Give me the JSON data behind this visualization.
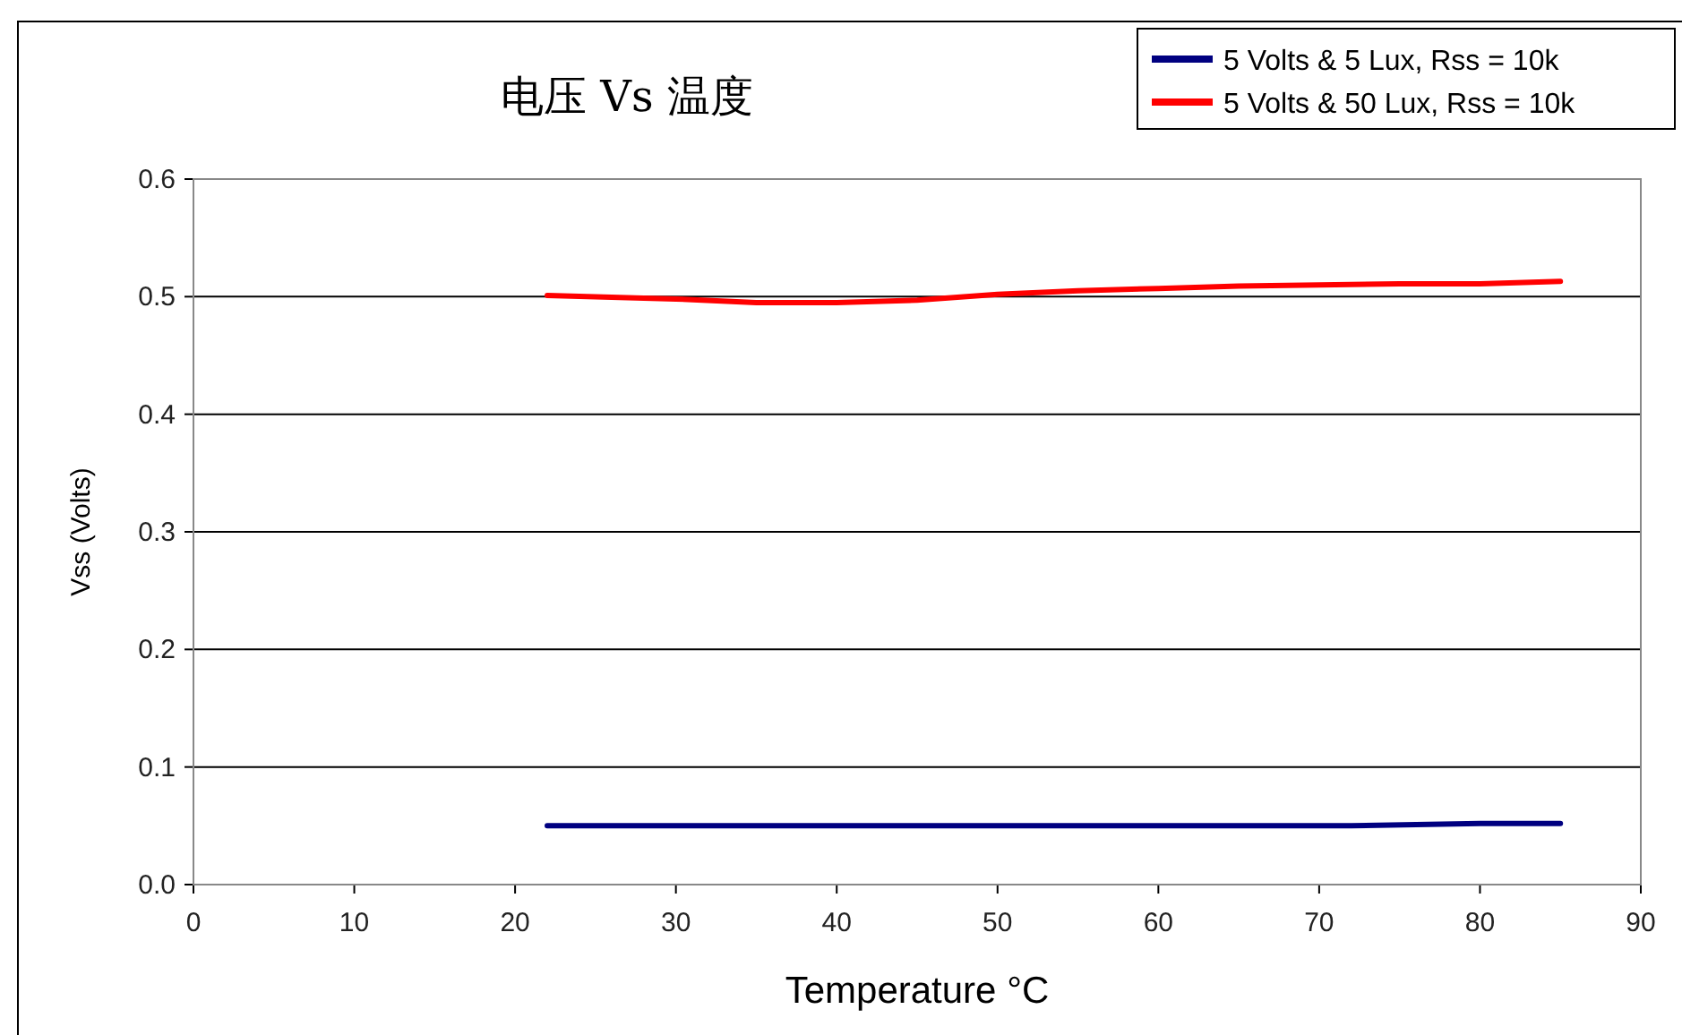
{
  "chart_data": {
    "type": "line",
    "title": "电压 Vs 温度",
    "xlabel": "Temperature °C",
    "ylabel": "Vss (Volts)",
    "xlim": [
      0,
      90
    ],
    "xticks": [
      0,
      10,
      20,
      30,
      40,
      50,
      60,
      70,
      80,
      90
    ],
    "ylim": [
      0,
      0.6
    ],
    "yticks": [
      {
        "value": 0,
        "label": "0.0"
      },
      0.1,
      0.2,
      0.3,
      0.4,
      0.5,
      0.6
    ],
    "grid": "y",
    "legend": "top right",
    "marker": "none",
    "line_style": "solid",
    "series": [
      {
        "name": "5 Volts & 5 Lux, Rss = 10k",
        "color": "#000080",
        "x": [
          22,
          60,
          72,
          80,
          85
        ],
        "values": [
          0.05,
          0.05,
          0.05,
          0.052,
          0.052
        ]
      },
      {
        "name": "5 Volts & 50 Lux, Rss = 10k",
        "color": "#ff0000",
        "x": [
          22,
          30,
          35,
          40,
          45,
          50,
          55,
          60,
          65,
          70,
          75,
          80,
          85
        ],
        "values": [
          0.501,
          0.498,
          0.495,
          0.495,
          0.497,
          0.502,
          0.505,
          0.507,
          0.509,
          0.51,
          0.511,
          0.511,
          0.513
        ]
      }
    ]
  }
}
